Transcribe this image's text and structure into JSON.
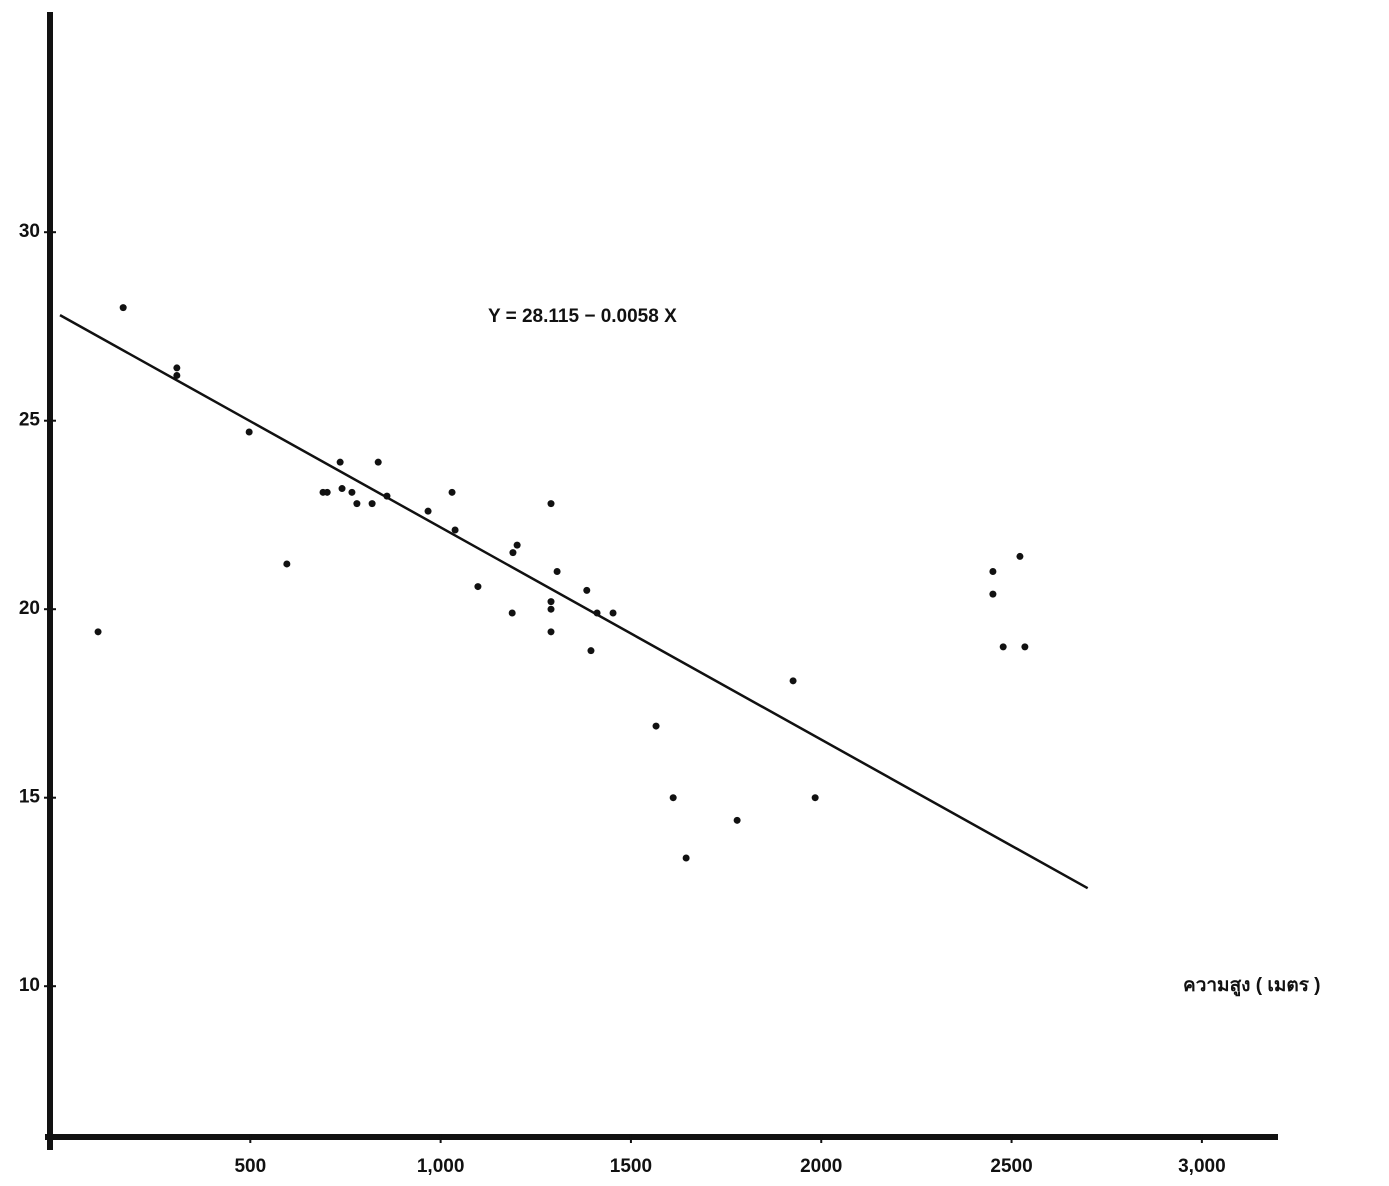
{
  "chart_data": {
    "type": "scatter",
    "annotation": "Y = 28.115 − 0.0058 X",
    "x_label": "ความสูง ( เมตร )",
    "xlim": [
      0,
      3200
    ],
    "ylim": [
      6,
      36
    ],
    "xticks": [
      500,
      {
        "value": 1000,
        "label": "1,000"
      },
      1500,
      2000,
      2500,
      {
        "value": 3000,
        "label": "3,000"
      }
    ],
    "yticks": [
      10,
      15,
      20,
      25,
      30
    ],
    "color": "#111111",
    "x": [
      166,
      307,
      307,
      497,
      100,
      596,
      691,
      702,
      736,
      741,
      767,
      780,
      820,
      836,
      859,
      967,
      1030,
      1038,
      1098,
      1188,
      1190,
      1201,
      1290,
      1290,
      1290,
      1290,
      1306,
      1384,
      1395,
      1411,
      1453,
      1566,
      1611,
      1645,
      1779,
      1926,
      1984,
      2451,
      2451,
      2522,
      2535,
      2478
    ],
    "values": [
      28.0,
      26.4,
      26.2,
      24.7,
      19.4,
      21.2,
      23.1,
      23.1,
      23.9,
      23.2,
      23.1,
      22.8,
      22.8,
      23.9,
      23.0,
      22.6,
      23.1,
      22.1,
      20.6,
      19.9,
      21.5,
      21.7,
      22.8,
      20.2,
      20.0,
      19.4,
      21.0,
      20.5,
      18.9,
      19.9,
      19.9,
      16.9,
      15.0,
      13.4,
      14.4,
      18.1,
      15.0,
      20.4,
      21.0,
      21.4,
      19.0,
      19.0
    ],
    "lines": [
      {
        "x": [
          0,
          2700
        ],
        "values": [
          27.8,
          12.6
        ],
        "color": "#111111"
      }
    ]
  }
}
